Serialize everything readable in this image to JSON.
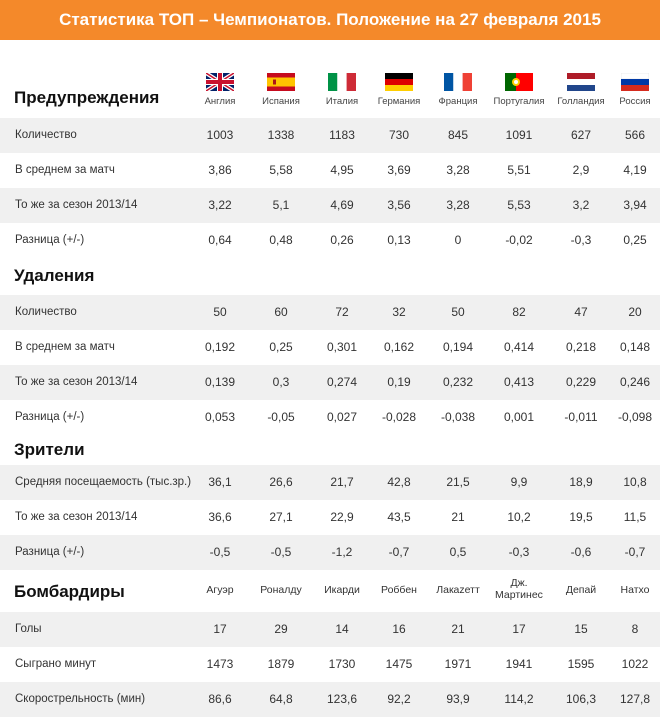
{
  "title": "Статистика ТОП – Чемпионатов. Положение на 27 февраля 2015",
  "countries": [
    {
      "name": "Англия",
      "flag": "uk-flag"
    },
    {
      "name": "Испания",
      "flag": "spain-flag"
    },
    {
      "name": "Италия",
      "flag": "italy-flag"
    },
    {
      "name": "Германия",
      "flag": "germany-flag"
    },
    {
      "name": "Франция",
      "flag": "france-flag"
    },
    {
      "name": "Португалия",
      "flag": "portugal-flag"
    },
    {
      "name": "Голландия",
      "flag": "netherlands-flag"
    },
    {
      "name": "Россия",
      "flag": "russia-flag"
    }
  ],
  "sections": [
    {
      "title": "Предупреждения",
      "rows": [
        {
          "label": "Количество",
          "values": [
            "1003",
            "1338",
            "1183",
            "730",
            "845",
            "1091",
            "627",
            "566"
          ]
        },
        {
          "label": "В среднем за матч",
          "values": [
            "3,86",
            "5,58",
            "4,95",
            "3,69",
            "3,28",
            "5,51",
            "2,9",
            "4,19"
          ]
        },
        {
          "label": "То же за сезон 2013/14",
          "values": [
            "3,22",
            "5,1",
            "4,69",
            "3,56",
            "3,28",
            "5,53",
            "3,2",
            "3,94"
          ]
        },
        {
          "label": "Разница (+/-)",
          "values": [
            "0,64",
            "0,48",
            "0,26",
            "0,13",
            "0",
            "-0,02",
            "-0,3",
            "0,25"
          ]
        }
      ]
    },
    {
      "title": "Удаления",
      "rows": [
        {
          "label": "Количество",
          "values": [
            "50",
            "60",
            "72",
            "32",
            "50",
            "82",
            "47",
            "20"
          ]
        },
        {
          "label": "В среднем за матч",
          "values": [
            "0,192",
            "0,25",
            "0,301",
            "0,162",
            "0,194",
            "0,414",
            "0,218",
            "0,148"
          ]
        },
        {
          "label": "То же за сезон 2013/14",
          "values": [
            "0,139",
            "0,3",
            "0,274",
            "0,19",
            "0,232",
            "0,413",
            "0,229",
            "0,246"
          ]
        },
        {
          "label": "Разница (+/-)",
          "values": [
            "0,053",
            "-0,05",
            "0,027",
            "-0,028",
            "-0,038",
            "0,001",
            "-0,011",
            "-0,098"
          ]
        }
      ]
    },
    {
      "title": "Зрители",
      "rows": [
        {
          "label": "Средняя посещаемость (тыс.зр.)",
          "values": [
            "36,1",
            "26,6",
            "21,7",
            "42,8",
            "21,5",
            "9,9",
            "18,9",
            "10,8"
          ]
        },
        {
          "label": "То же за сезон 2013/14",
          "values": [
            "36,6",
            "27,1",
            "22,9",
            "43,5",
            "21",
            "10,2",
            "19,5",
            "11,5"
          ]
        },
        {
          "label": "Разница (+/-)",
          "values": [
            "-0,5",
            "-0,5",
            "-1,2",
            "-0,7",
            "0,5",
            "-0,3",
            "-0,6",
            "-0,7"
          ]
        }
      ]
    },
    {
      "title": "Бомбардиры",
      "players": [
        "Агуэр",
        "Роналду",
        "Икарди",
        "Роббен",
        "Лакazетт",
        "Дж. Мартинес",
        "Депай",
        "Натхо"
      ],
      "rows": [
        {
          "label": "Голы",
          "values": [
            "17",
            "29",
            "14",
            "16",
            "21",
            "17",
            "15",
            "8"
          ]
        },
        {
          "label": "Сыграно минут",
          "values": [
            "1473",
            "1879",
            "1730",
            "1475",
            "1971",
            "1941",
            "1595",
            "1022"
          ]
        },
        {
          "label": "Скорострельность (мин)",
          "values": [
            "86,6",
            "64,8",
            "123,6",
            "92,2",
            "93,9",
            "114,2",
            "106,3",
            "127,8"
          ]
        }
      ]
    }
  ],
  "colors": {
    "banner": "#f4892a",
    "row_alt": "#f0f0f0"
  }
}
